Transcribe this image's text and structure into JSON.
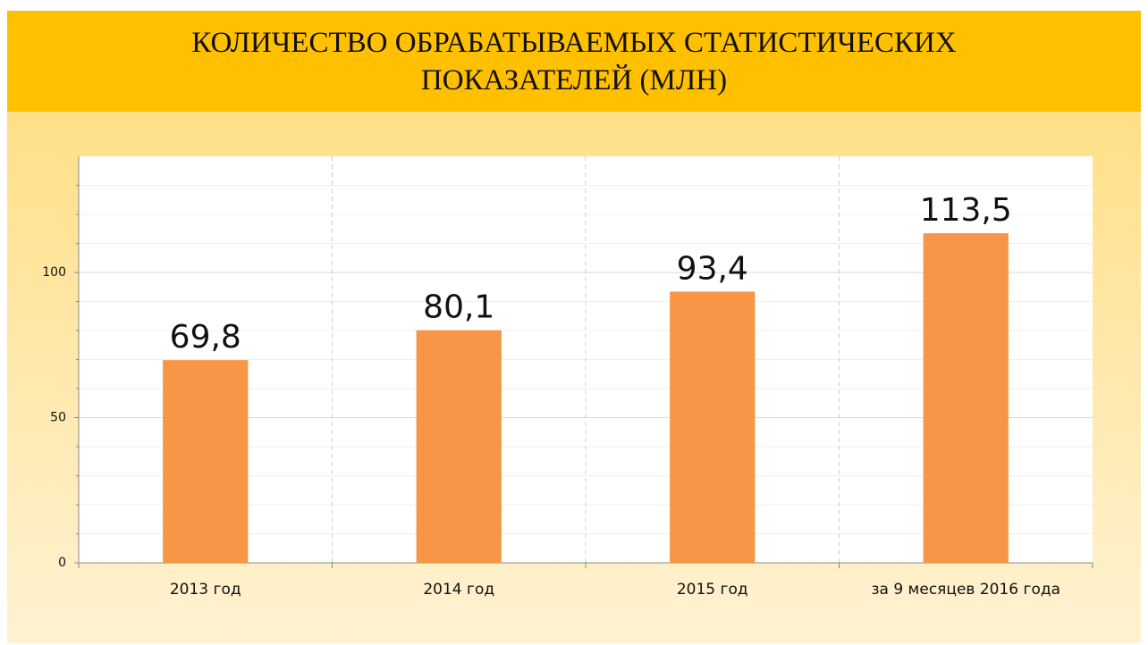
{
  "chart_data": {
    "type": "bar",
    "title": "КОЛИЧЕСТВО ОБРАБАТЫВАЕМЫХ СТАТИСТИЧЕСКИХ ПОКАЗАТЕЛЕЙ (МЛН)",
    "categories": [
      "2013 год",
      "2014 год",
      "2015 год",
      "за 9 месяцев 2016 года"
    ],
    "values": [
      69.8,
      80.1,
      93.4,
      113.5
    ],
    "value_labels": [
      "69,8",
      "80,1",
      "93,4",
      "113,5"
    ],
    "color": "#F79646",
    "ylim": [
      0,
      140
    ],
    "yticks": [
      0,
      50,
      100
    ],
    "yticks_minor": [
      10,
      20,
      30,
      40,
      60,
      70,
      80,
      90,
      110,
      120,
      130
    ],
    "grid": true
  }
}
